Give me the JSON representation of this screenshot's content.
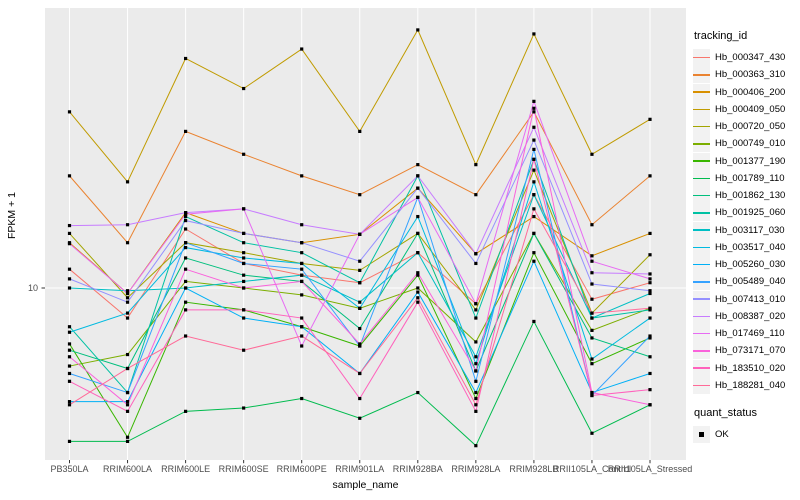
{
  "figure": {
    "panel_bg": "#EBEBEB",
    "grid_color": "#FFFFFF",
    "tick_color": "#333333",
    "tick_label_color": "#4D4D4D",
    "y_axis": {
      "title": "FPKM + 1",
      "tick_label": "10"
    },
    "x_axis": {
      "title": "sample_name"
    }
  },
  "legend": {
    "tracking_title": "tracking_id",
    "quant_title": "quant_status",
    "quant_label": "OK"
  },
  "chart_data": {
    "type": "line",
    "title": "",
    "xlabel": "sample_name",
    "ylabel": "FPKM + 1",
    "y_scale": "log10",
    "y_ticks": [
      10
    ],
    "ylim": [
      2.8,
      79
    ],
    "grid": "major",
    "legend_position": "right",
    "point_marker": "black-square",
    "x_categories": [
      "PB350LA",
      "RRIM600LA",
      "RRIM600LE",
      "RRIM600SE",
      "RRIM600PE",
      "RRIM901LA",
      "RRIM928BA",
      "RRIM928LA",
      "RRIM928LB",
      "RRII105LA_Control",
      "RRII105LA_Stressed"
    ],
    "series": [
      {
        "name": "Hb_000347_430",
        "color": "#F8766D",
        "values": [
          11.5,
          8.0,
          15.5,
          12.0,
          11.0,
          10.4,
          13.0,
          8.9,
          20.0,
          9.2,
          10.4
        ]
      },
      {
        "name": "Hb_000363_310",
        "color": "#EA8331",
        "values": [
          23,
          14,
          32,
          27,
          23,
          20,
          25,
          20,
          37,
          16,
          23
        ]
      },
      {
        "name": "Hb_000406_200",
        "color": "#D89000",
        "values": [
          14,
          9.6,
          17.5,
          15,
          14,
          14.9,
          21,
          12.9,
          17,
          12.7,
          15
        ]
      },
      {
        "name": "Hb_000409_050",
        "color": "#C09B00",
        "values": [
          37,
          22,
          55,
          44,
          59,
          32,
          68,
          25,
          66,
          27,
          35
        ]
      },
      {
        "name": "Hb_000720_050",
        "color": "#A3A500",
        "values": [
          15,
          9.3,
          14,
          13,
          12,
          11.4,
          15,
          8.5,
          24,
          8.3,
          12.8
        ]
      },
      {
        "name": "Hb_000749_010",
        "color": "#7CAE00",
        "values": [
          5.6,
          6.1,
          10.5,
          10,
          9.5,
          8.6,
          10,
          6.7,
          15,
          7.3,
          8.6
        ]
      },
      {
        "name": "Hb_001377_190",
        "color": "#39B600",
        "values": [
          6.6,
          3.3,
          9,
          8.5,
          7.5,
          6.5,
          11,
          4.4,
          13,
          5.7,
          6.9
        ]
      },
      {
        "name": "Hb_001789_110",
        "color": "#00BB4E",
        "values": [
          3.2,
          3.2,
          4.0,
          4.1,
          4.4,
          3.8,
          4.6,
          3.1,
          7.8,
          3.4,
          4.2
        ]
      },
      {
        "name": "Hb_001862_130",
        "color": "#00BF7D",
        "values": [
          6.3,
          5.5,
          12.5,
          11,
          10.5,
          7.4,
          15,
          5.4,
          15,
          6.9,
          6.0
        ]
      },
      {
        "name": "Hb_001925_060",
        "color": "#00C1A3",
        "values": [
          7.5,
          4.6,
          17,
          14,
          13,
          10.4,
          23,
          8.0,
          26,
          8.0,
          8.5
        ]
      },
      {
        "name": "Hb_003117_030",
        "color": "#00BFC4",
        "values": [
          10,
          9.8,
          10,
          10.5,
          11,
          9.0,
          13,
          6.0,
          20,
          8.0,
          9.6
        ]
      },
      {
        "name": "Hb_003517_040",
        "color": "#00BAE0",
        "values": [
          7.2,
          8.3,
          13.5,
          12.5,
          12,
          8.6,
          17,
          5.7,
          22,
          5.9,
          8.0
        ]
      },
      {
        "name": "Hb_005260_030",
        "color": "#00B0F6",
        "values": [
          4.3,
          4.3,
          10,
          8,
          7.5,
          5.3,
          9.7,
          4.6,
          12.2,
          4.6,
          5.3
        ]
      },
      {
        "name": "Hb_005489_040",
        "color": "#35A2FF",
        "values": [
          5.3,
          4.6,
          14,
          12,
          11.5,
          6.5,
          19.6,
          5.0,
          28,
          4.5,
          7.0
        ]
      },
      {
        "name": "Hb_007413_010",
        "color": "#9590FF",
        "values": [
          10.7,
          9.0,
          16.5,
          15,
          14,
          12.2,
          21,
          12,
          30,
          10.3,
          9.8
        ]
      },
      {
        "name": "Hb_008387_020",
        "color": "#C77CFF",
        "values": [
          15.9,
          16,
          17.5,
          18,
          16,
          14.9,
          23,
          12.9,
          33,
          11.2,
          11.1
        ]
      },
      {
        "name": "Hb_017469_110",
        "color": "#E76BF3",
        "values": [
          13.9,
          9.6,
          17.3,
          18,
          6.5,
          14.9,
          19.6,
          8.9,
          40,
          12.2,
          10.7
        ]
      },
      {
        "name": "Hb_073171_070",
        "color": "#FA62DB",
        "values": [
          6.0,
          4.2,
          11.5,
          10,
          10.5,
          6.6,
          11.2,
          5.4,
          38,
          4.6,
          4.2
        ]
      },
      {
        "name": "Hb_183510_020",
        "color": "#FF62BC",
        "values": [
          5.0,
          4.0,
          8.5,
          8.5,
          8.0,
          4.4,
          9.0,
          4.0,
          26,
          4.5,
          4.7
        ]
      },
      {
        "name": "Hb_188281_040",
        "color": "#FF6A98",
        "values": [
          4.2,
          5.5,
          7.0,
          6.3,
          7.0,
          5.3,
          9.3,
          4.2,
          18,
          8.3,
          8.6
        ]
      }
    ]
  }
}
